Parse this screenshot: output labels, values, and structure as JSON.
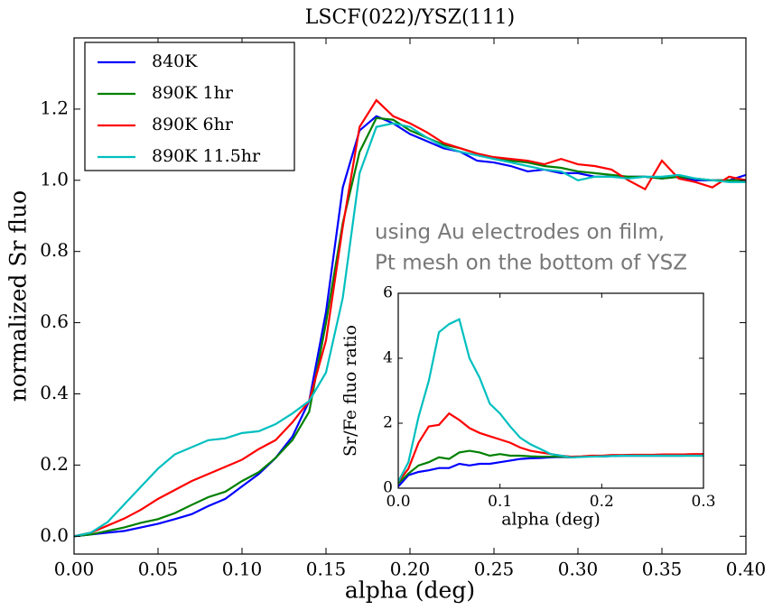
{
  "chart_data": [
    {
      "type": "line",
      "title": "LSCF(022)/YSZ(111)",
      "xlabel": "alpha (deg)",
      "ylabel": "normalized Sr fluo",
      "annotations": [
        "using Au electrodes on film,",
        "Pt mesh on the bottom of YSZ"
      ],
      "legend": "upper left",
      "grid": false,
      "xlim": [
        0,
        0.4
      ],
      "ylim": [
        -0.05,
        1.4
      ],
      "xticks": [
        {
          "value": 0,
          "label": "0.00"
        },
        0.05,
        {
          "value": 0.1,
          "label": "0.10"
        },
        0.15,
        {
          "value": 0.2,
          "label": "0.20"
        },
        0.25,
        {
          "value": 0.3,
          "label": "0.30"
        },
        0.35,
        {
          "value": 0.4,
          "label": "0.40"
        }
      ],
      "yticks": [
        {
          "value": 0,
          "label": "0.0"
        },
        0.2,
        0.4,
        0.6,
        0.8,
        {
          "value": 1,
          "label": "1.0"
        },
        1.2
      ],
      "x": [
        0,
        0.01,
        0.02,
        0.03,
        0.04,
        0.05,
        0.06,
        0.07,
        0.08,
        0.09,
        0.1,
        0.11,
        0.12,
        0.13,
        0.14,
        0.15,
        0.16,
        0.17,
        0.18,
        0.19,
        0.2,
        0.21,
        0.22,
        0.23,
        0.24,
        0.25,
        0.26,
        0.27,
        0.28,
        0.29,
        0.3,
        0.31,
        0.32,
        0.33,
        0.34,
        0.35,
        0.36,
        0.37,
        0.38,
        0.39,
        0.4
      ],
      "series": [
        {
          "name": "840K",
          "color": "#0000ff",
          "values": [
            0,
            0.005,
            0.01,
            0.015,
            0.025,
            0.035,
            0.048,
            0.062,
            0.085,
            0.105,
            0.14,
            0.175,
            0.22,
            0.28,
            0.38,
            0.63,
            0.98,
            1.14,
            1.18,
            1.16,
            1.13,
            1.11,
            1.09,
            1.08,
            1.055,
            1.05,
            1.04,
            1.025,
            1.03,
            1.02,
            1.02,
            1.01,
            1.01,
            1.01,
            1.01,
            1.005,
            1.01,
            1.0,
            1.0,
            1.0,
            1.015
          ]
        },
        {
          "name": "890K 1hr",
          "color": "#008000",
          "values": [
            0,
            0.005,
            0.015,
            0.025,
            0.038,
            0.048,
            0.065,
            0.088,
            0.11,
            0.125,
            0.155,
            0.18,
            0.22,
            0.27,
            0.35,
            0.6,
            0.88,
            1.08,
            1.175,
            1.17,
            1.14,
            1.12,
            1.1,
            1.09,
            1.075,
            1.06,
            1.055,
            1.05,
            1.04,
            1.035,
            1.025,
            1.02,
            1.015,
            1.01,
            1.01,
            1.005,
            1.01,
            1.005,
            1.0,
            1.0,
            1.0
          ]
        },
        {
          "name": "890K 6hr",
          "color": "#ff0000",
          "values": [
            0,
            0.01,
            0.03,
            0.05,
            0.075,
            0.105,
            0.13,
            0.155,
            0.175,
            0.195,
            0.215,
            0.245,
            0.27,
            0.32,
            0.38,
            0.55,
            0.87,
            1.15,
            1.225,
            1.18,
            1.16,
            1.135,
            1.105,
            1.09,
            1.075,
            1.065,
            1.06,
            1.055,
            1.045,
            1.06,
            1.045,
            1.04,
            1.03,
            1.0,
            0.975,
            1.055,
            1.005,
            0.995,
            0.98,
            1.01,
            1.0
          ]
        },
        {
          "name": "890K 11.5hr",
          "color": "#00bfbf",
          "values": [
            0,
            0.01,
            0.04,
            0.09,
            0.14,
            0.19,
            0.23,
            0.25,
            0.27,
            0.275,
            0.29,
            0.295,
            0.315,
            0.345,
            0.38,
            0.46,
            0.67,
            1.02,
            1.15,
            1.16,
            1.15,
            1.12,
            1.095,
            1.08,
            1.07,
            1.06,
            1.05,
            1.04,
            1.03,
            1.025,
            1.0,
            1.01,
            1.01,
            1.005,
            1.01,
            1.01,
            1.015,
            1.005,
            1.0,
            0.995,
            0.995
          ]
        }
      ]
    },
    {
      "type": "line",
      "xlabel": "alpha (deg)",
      "ylabel": "Sr/Fe fluo ratio",
      "grid": false,
      "xlim": [
        0,
        0.3
      ],
      "ylim": [
        0,
        6
      ],
      "xticks": [
        {
          "value": 0,
          "label": "0.0"
        },
        0.1,
        0.2,
        0.3
      ],
      "yticks": [
        0,
        2,
        4,
        6
      ],
      "x": [
        0,
        0.01,
        0.02,
        0.03,
        0.04,
        0.05,
        0.06,
        0.07,
        0.08,
        0.09,
        0.1,
        0.11,
        0.12,
        0.13,
        0.14,
        0.15,
        0.16,
        0.17,
        0.18,
        0.19,
        0.2,
        0.21,
        0.22,
        0.23,
        0.24,
        0.25,
        0.26,
        0.27,
        0.28,
        0.29,
        0.3
      ],
      "series": [
        {
          "name": "840K",
          "color": "#0000ff",
          "values": [
            0.05,
            0.4,
            0.5,
            0.55,
            0.62,
            0.62,
            0.75,
            0.7,
            0.75,
            0.75,
            0.8,
            0.85,
            0.9,
            0.92,
            0.93,
            0.95,
            0.96,
            0.95,
            0.97,
            0.98,
            0.98,
            0.99,
            1.0,
            1.0,
            1.0,
            1.0,
            1.0,
            1.0,
            1.0,
            1.02,
            1.02
          ]
        },
        {
          "name": "890K 1hr",
          "color": "#008000",
          "values": [
            0.15,
            0.45,
            0.7,
            0.8,
            0.95,
            0.9,
            1.1,
            1.15,
            1.1,
            1.0,
            1.05,
            1.0,
            1.0,
            0.98,
            0.97,
            0.97,
            0.97,
            0.95,
            0.97,
            0.98,
            0.98,
            1.0,
            1.0,
            1.0,
            1.0,
            1.0,
            1.0,
            1.0,
            1.0,
            1.0,
            1.0
          ]
        },
        {
          "name": "890K 6hr",
          "color": "#ff0000",
          "values": [
            0.2,
            0.6,
            1.4,
            1.9,
            1.95,
            2.3,
            2.1,
            1.85,
            1.7,
            1.6,
            1.5,
            1.4,
            1.25,
            1.15,
            1.1,
            1.05,
            1.0,
            0.97,
            0.98,
            1.0,
            1.0,
            1.02,
            1.02,
            1.03,
            1.03,
            1.03,
            1.04,
            1.04,
            1.04,
            1.05,
            1.05
          ]
        },
        {
          "name": "890K 11.5hr",
          "color": "#00bfbf",
          "values": [
            0.2,
            0.8,
            2.2,
            3.3,
            4.8,
            5.05,
            5.2,
            4.0,
            3.4,
            2.6,
            2.3,
            1.9,
            1.55,
            1.35,
            1.2,
            1.05,
            1.0,
            0.95,
            0.96,
            0.97,
            0.98,
            0.99,
            1.0,
            1.0,
            1.0,
            1.0,
            1.0,
            1.0,
            1.0,
            1.0,
            1.0
          ]
        }
      ]
    }
  ]
}
